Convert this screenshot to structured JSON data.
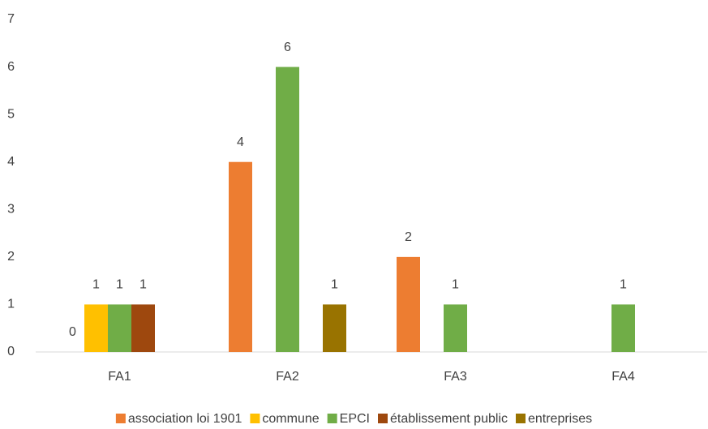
{
  "chart_data": {
    "type": "bar",
    "categories": [
      "FA1",
      "FA2",
      "FA3",
      "FA4"
    ],
    "series": [
      {
        "name": "association loi 1901",
        "color": "#ed7d31",
        "values": [
          0,
          4,
          2,
          null
        ]
      },
      {
        "name": "commune",
        "color": "#ffc000",
        "values": [
          1,
          null,
          null,
          null
        ]
      },
      {
        "name": "EPCI",
        "color": "#70ad47",
        "values": [
          1,
          6,
          1,
          1
        ]
      },
      {
        "name": "établissement public",
        "color": "#9e480e",
        "values": [
          1,
          null,
          null,
          null
        ]
      },
      {
        "name": "entreprises",
        "color": "#997300",
        "values": [
          null,
          1,
          null,
          null
        ]
      }
    ],
    "ylim": [
      0,
      7
    ],
    "yticks": [
      0,
      1,
      2,
      3,
      4,
      5,
      6,
      7
    ],
    "grid": false,
    "legend": "bottom"
  }
}
